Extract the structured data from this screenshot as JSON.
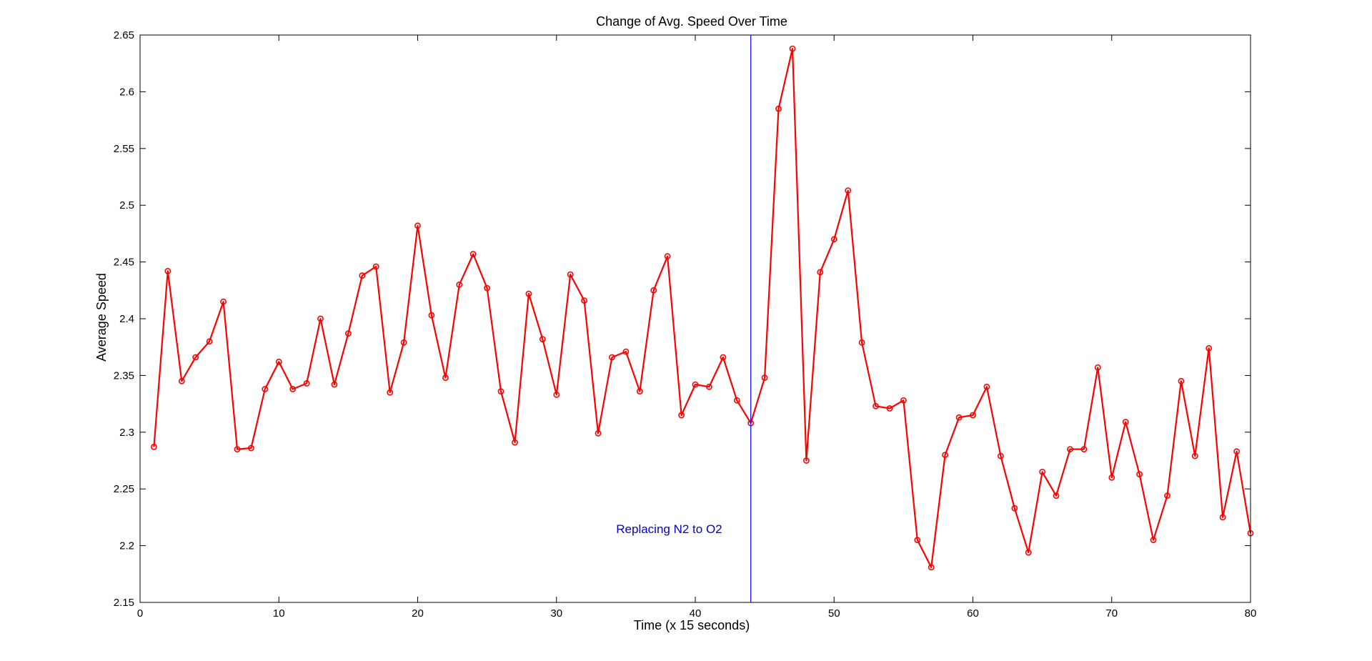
{
  "chart_data": {
    "type": "line",
    "title": "Change of Avg. Speed Over Time",
    "xlabel": "Time (x 15 seconds)",
    "ylabel": "Average Speed",
    "xlim": [
      0,
      80
    ],
    "ylim": [
      2.15,
      2.65
    ],
    "xticks": [
      0,
      10,
      20,
      30,
      40,
      50,
      60,
      70,
      80
    ],
    "xtick_labels": [
      "0",
      "10",
      "20",
      "30",
      "40",
      "50",
      "60",
      "70",
      "80"
    ],
    "yticks": [
      2.15,
      2.2,
      2.25,
      2.3,
      2.35,
      2.4,
      2.45,
      2.5,
      2.55,
      2.6,
      2.65
    ],
    "ytick_labels": [
      "2.15",
      "2.2",
      "2.25",
      "2.3",
      "2.35",
      "2.4",
      "2.45",
      "2.5",
      "2.55",
      "2.6",
      "2.65"
    ],
    "grid": false,
    "legend": "none",
    "series": [
      {
        "color": "#ff0000",
        "marker": "circle",
        "x": [
          1,
          2,
          3,
          4,
          5,
          6,
          7,
          8,
          9,
          10,
          11,
          12,
          13,
          14,
          15,
          16,
          17,
          18,
          19,
          20,
          21,
          22,
          23,
          24,
          25,
          26,
          27,
          28,
          29,
          30,
          31,
          32,
          33,
          34,
          35,
          36,
          37,
          38,
          39,
          40,
          41,
          42,
          43,
          44,
          45,
          46,
          47,
          48,
          49,
          50,
          51,
          52,
          53,
          54,
          55,
          56,
          57,
          58,
          59,
          60,
          61,
          62,
          63,
          64,
          65,
          66,
          67,
          68,
          69,
          70,
          71,
          72,
          73,
          74,
          75,
          76,
          77,
          78,
          79,
          80
        ],
        "y": [
          2.287,
          2.442,
          2.345,
          2.366,
          2.38,
          2.415,
          2.285,
          2.286,
          2.338,
          2.362,
          2.338,
          2.343,
          2.4,
          2.342,
          2.387,
          2.438,
          2.446,
          2.335,
          2.379,
          2.482,
          2.403,
          2.348,
          2.43,
          2.457,
          2.427,
          2.336,
          2.291,
          2.422,
          2.382,
          2.333,
          2.439,
          2.416,
          2.299,
          2.366,
          2.371,
          2.336,
          2.425,
          2.455,
          2.315,
          2.342,
          2.34,
          2.366,
          2.328,
          2.308,
          2.348,
          2.585,
          2.638,
          2.275,
          2.441,
          2.47,
          2.513,
          2.379,
          2.323,
          2.321,
          2.328,
          2.205,
          2.181,
          2.28,
          2.313,
          2.315,
          2.34,
          2.279,
          2.233,
          2.194,
          2.265,
          2.244,
          2.285,
          2.285,
          2.357,
          2.26,
          2.309,
          2.263,
          2.205,
          2.244,
          2.345,
          2.279,
          2.374,
          2.225,
          2.283,
          2.211
        ]
      }
    ],
    "annotations": [
      {
        "type": "vline",
        "x": 44,
        "color": "#0000ff",
        "text": "Replacing N2 to O2",
        "text_x": 34.3,
        "text_y": 2.215,
        "text_color": "#0000cc"
      }
    ]
  }
}
